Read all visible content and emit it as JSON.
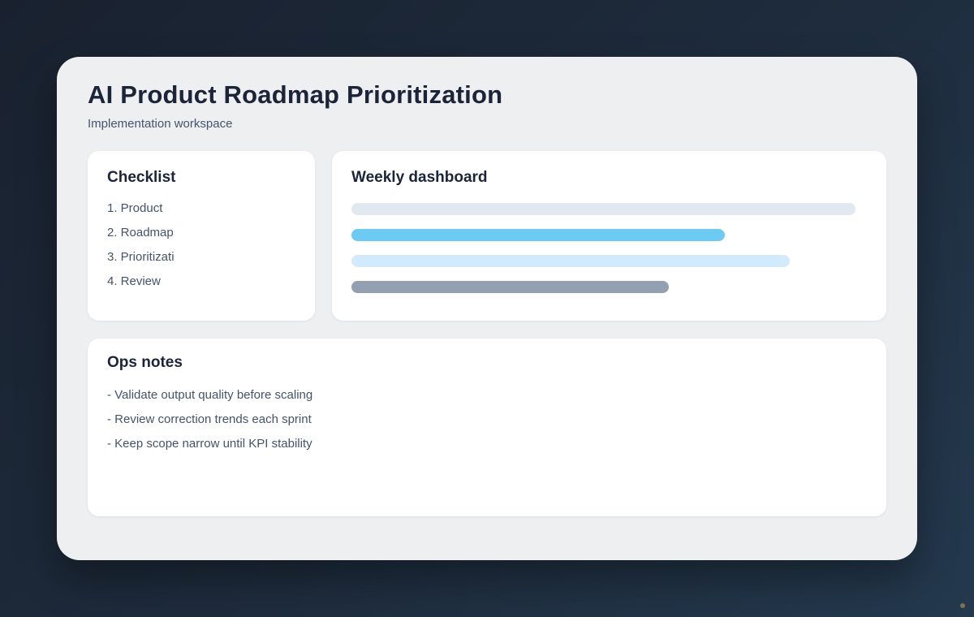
{
  "page": {
    "title": "AI Product Roadmap Prioritization",
    "subtitle": "Implementation workspace"
  },
  "checklist": {
    "title": "Checklist",
    "items": [
      "1. Product",
      "2. Roadmap",
      "3. Prioritizati",
      "4. Review"
    ]
  },
  "dashboard": {
    "title": "Weekly dashboard",
    "bars": [
      {
        "name": "bar-1",
        "color": "#e2e8f0",
        "width_pct": 97.8
      },
      {
        "name": "bar-2",
        "color": "#6dcaf3",
        "width_pct": 72.4
      },
      {
        "name": "bar-3",
        "color": "#d3eafc",
        "width_pct": 85.0
      },
      {
        "name": "bar-4",
        "color": "#93a0b2",
        "width_pct": 61.5
      }
    ]
  },
  "ops_notes": {
    "title": "Ops notes",
    "items": [
      "- Validate output quality before scaling",
      "- Review correction trends each sprint",
      "- Keep scope narrow until KPI stability"
    ]
  },
  "colors": {
    "background_gradient_start": "#19212f",
    "background_gradient_end": "#24394e",
    "workspace_card_bg": "#edeff1",
    "inner_card_bg": "#ffffff",
    "heading_text": "#1c2439",
    "body_text": "#44536b",
    "stray_dot": "#7e6f4e"
  }
}
